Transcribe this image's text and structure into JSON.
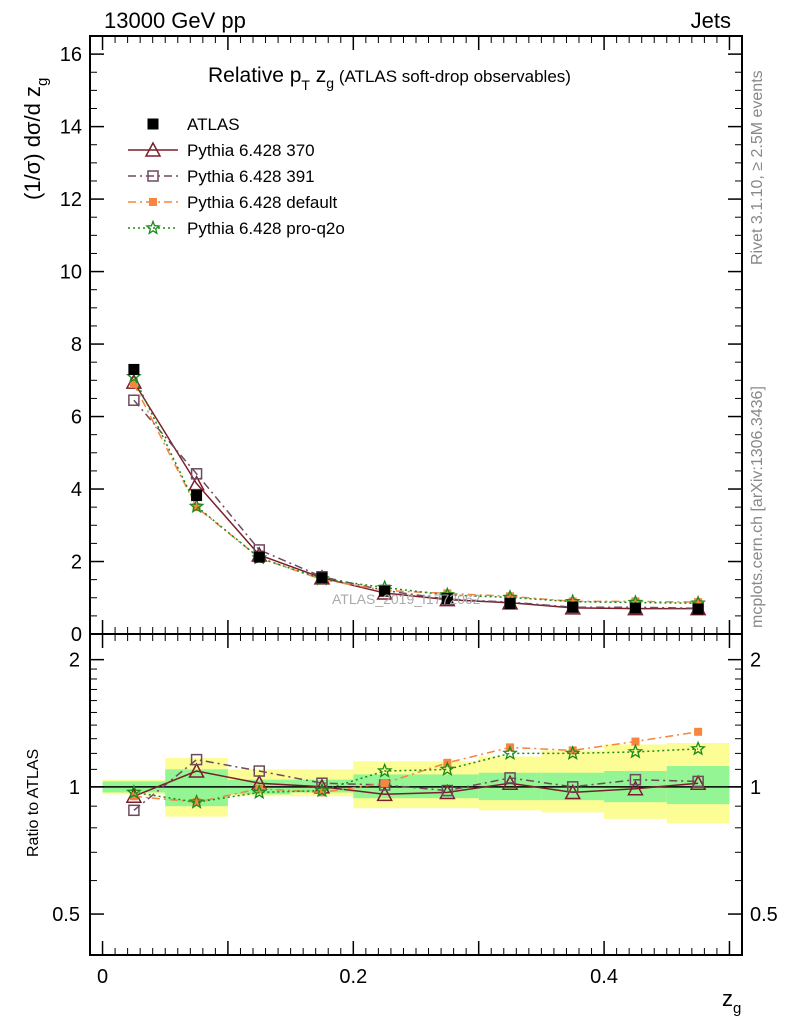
{
  "header": {
    "left": "13000 GeV pp",
    "right": "Jets"
  },
  "title": {
    "main": "Relative p",
    "sub": "T",
    "var": " z",
    "varsub": "g",
    "paren": " (ATLAS soft-drop observables)"
  },
  "side_text": {
    "rivet": "Rivet 3.1.10, ≥ 2.5M events",
    "mcplots": "mcplots.cern.ch [arXiv:1306.3436]"
  },
  "watermark": "ATLAS_2019_I1772062",
  "axes": {
    "ylabel_main": "(1/σ) dσ/d z",
    "ylabel_main_sub": "g",
    "ylabel_ratio": "Ratio to ATLAS",
    "xlabel": "z",
    "xlabel_sub": "g"
  },
  "legend": [
    {
      "label": "ATLAS"
    },
    {
      "label": "Pythia 6.428 370"
    },
    {
      "label": "Pythia 6.428 391"
    },
    {
      "label": "Pythia 6.428 default"
    },
    {
      "label": "Pythia 6.428 pro-q2o"
    }
  ],
  "colors": {
    "data": "#000000",
    "p370": "#7a1f2b",
    "p391": "#6e4a5e",
    "default": "#f5853f",
    "proq2o": "#1a8a1a",
    "band_inner": "#93f593",
    "band_outer": "#fdfd96"
  },
  "chart_data": [
    {
      "type": "line",
      "title": "Relative pT zg (ATLAS soft-drop observables)",
      "xlabel": "zg",
      "ylabel": "(1/σ) dσ/d zg",
      "xlim": [
        -0.01,
        0.51
      ],
      "ylim": [
        0,
        16.5
      ],
      "x_ticks": [
        "0",
        "0.2",
        "0.4"
      ],
      "y_ticks": [
        "0",
        "2",
        "4",
        "6",
        "8",
        "10",
        "12",
        "14",
        "16"
      ],
      "x": [
        0.025,
        0.075,
        0.125,
        0.175,
        0.225,
        0.275,
        0.325,
        0.375,
        0.425,
        0.475
      ],
      "series": [
        {
          "name": "ATLAS",
          "values": [
            7.3,
            3.82,
            2.12,
            1.55,
            1.18,
            0.98,
            0.84,
            0.74,
            0.71,
            0.69
          ]
        },
        {
          "name": "Pythia 6.428 370",
          "values": [
            6.95,
            4.15,
            2.18,
            1.55,
            1.13,
            0.95,
            0.86,
            0.72,
            0.7,
            0.7
          ]
        },
        {
          "name": "Pythia 6.428 391",
          "values": [
            6.45,
            4.42,
            2.32,
            1.58,
            1.2,
            0.96,
            0.88,
            0.74,
            0.74,
            0.71
          ]
        },
        {
          "name": "Pythia 6.428 default",
          "values": [
            6.9,
            3.5,
            2.1,
            1.5,
            1.2,
            1.12,
            1.04,
            0.9,
            0.9,
            0.88
          ]
        },
        {
          "name": "Pythia 6.428 pro-q2o",
          "values": [
            7.1,
            3.52,
            2.1,
            1.52,
            1.28,
            1.08,
            1.01,
            0.89,
            0.87,
            0.85
          ]
        }
      ],
      "legend_position": "top-left"
    },
    {
      "type": "line",
      "ylabel": "Ratio to ATLAS",
      "xlim": [
        -0.01,
        0.51
      ],
      "ylim": [
        0.4,
        2.3
      ],
      "y_scale": "log",
      "y_ticks": [
        "0.5",
        "1",
        "2"
      ],
      "x": [
        0.025,
        0.075,
        0.125,
        0.175,
        0.225,
        0.275,
        0.325,
        0.375,
        0.425,
        0.475
      ],
      "series": [
        {
          "name": "Pythia 6.428 370",
          "values": [
            0.95,
            1.09,
            1.02,
            1.0,
            0.96,
            0.97,
            1.02,
            0.97,
            0.99,
            1.02
          ]
        },
        {
          "name": "Pythia 6.428 391",
          "values": [
            0.88,
            1.16,
            1.09,
            1.02,
            1.01,
            0.98,
            1.05,
            1.0,
            1.04,
            1.03
          ]
        },
        {
          "name": "Pythia 6.428 default",
          "values": [
            0.95,
            0.92,
            0.99,
            0.97,
            1.02,
            1.14,
            1.24,
            1.22,
            1.28,
            1.35
          ]
        },
        {
          "name": "Pythia 6.428 pro-q2o",
          "values": [
            0.97,
            0.92,
            0.97,
            0.98,
            1.09,
            1.1,
            1.2,
            1.2,
            1.21,
            1.23
          ]
        }
      ],
      "bands": {
        "inner_lo": [
          0.97,
          0.9,
          0.96,
          0.97,
          0.94,
          0.94,
          0.93,
          0.93,
          0.92,
          0.91
        ],
        "inner_hi": [
          1.03,
          1.1,
          1.04,
          1.04,
          1.07,
          1.07,
          1.08,
          1.08,
          1.09,
          1.12
        ],
        "outer_lo": [
          0.96,
          0.85,
          0.95,
          0.95,
          0.89,
          0.89,
          0.88,
          0.87,
          0.84,
          0.82
        ],
        "outer_hi": [
          1.04,
          1.17,
          1.1,
          1.1,
          1.15,
          1.15,
          1.18,
          1.22,
          1.26,
          1.27
        ]
      },
      "reference_line": 1
    }
  ]
}
